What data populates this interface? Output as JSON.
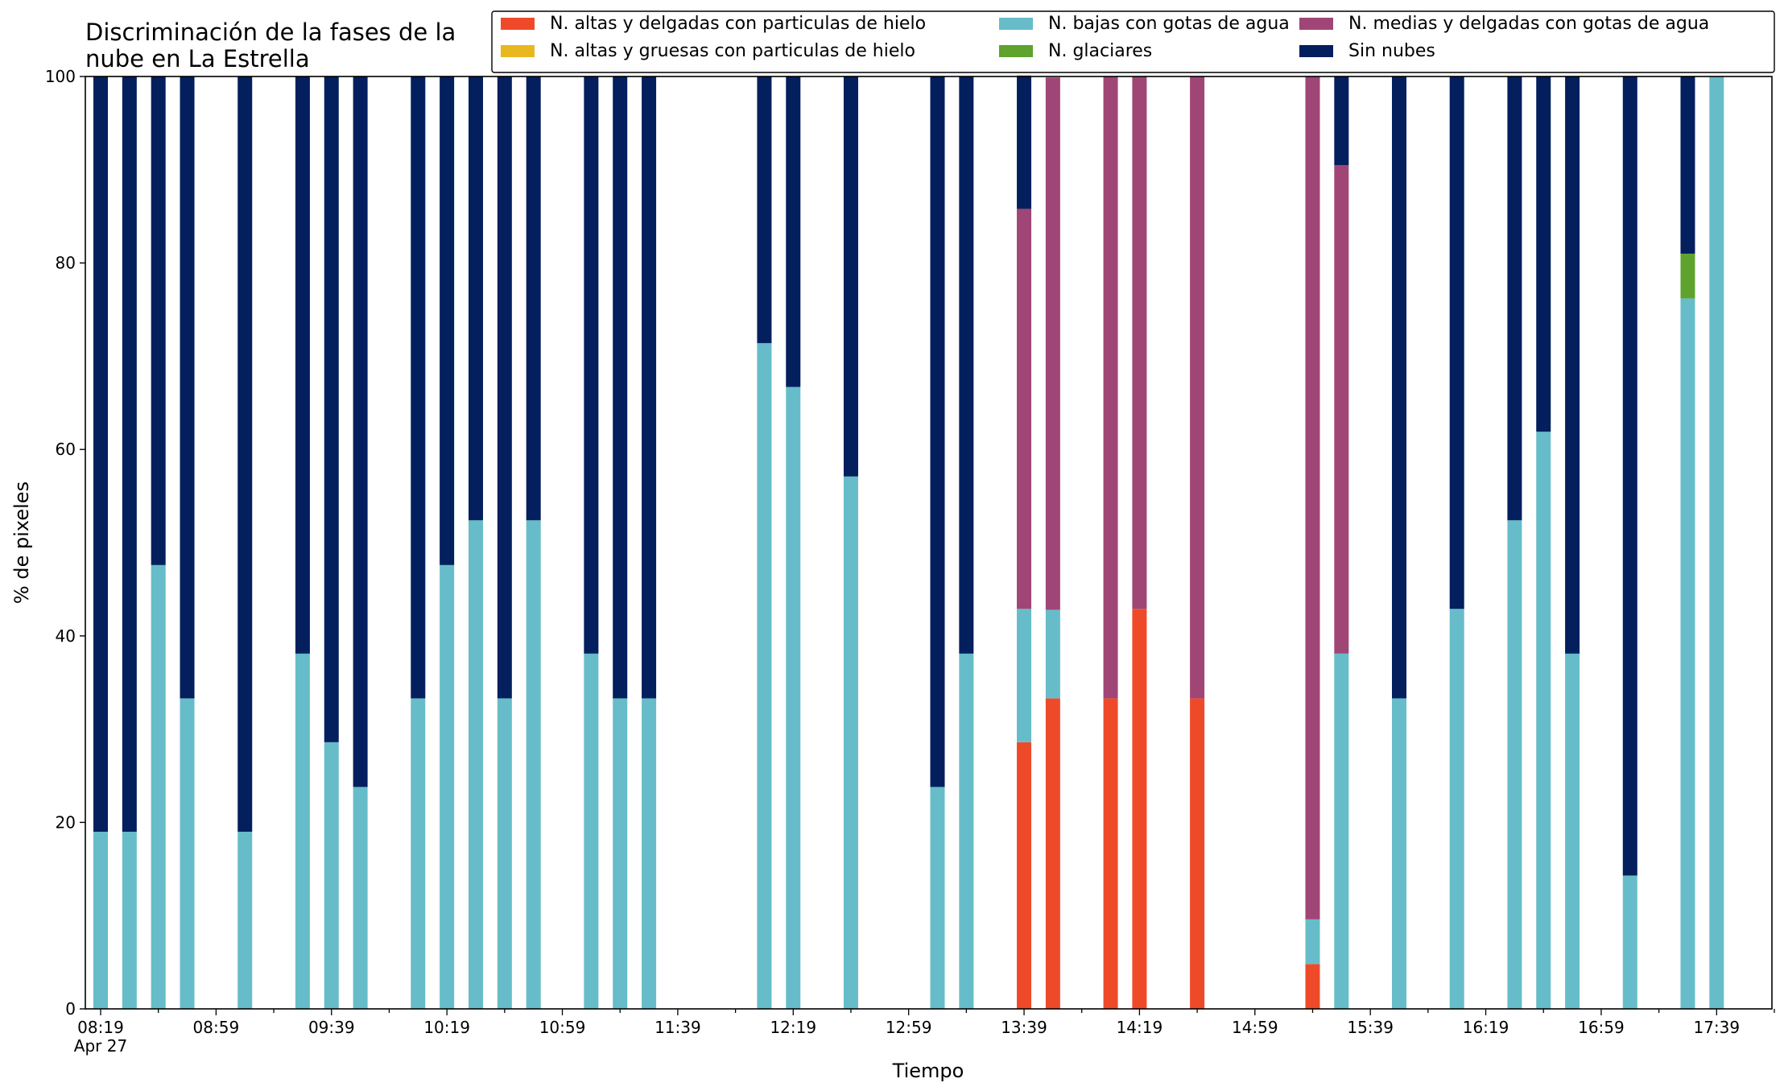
{
  "chart_data": {
    "type": "bar",
    "stacked": true,
    "title_lines": [
      "Discriminación de la fases de la",
      "nube en La Estrella"
    ],
    "xlabel": "Tiempo",
    "ylabel": "% de pixeles",
    "ylim": [
      0,
      100
    ],
    "yticks": [
      0,
      20,
      40,
      60,
      80,
      100
    ],
    "x_time_range": [
      "08:19",
      "17:59"
    ],
    "bin_minutes": 10,
    "major_ticks": [
      {
        "time": "08:19",
        "label": "08:19",
        "sublabel": "Apr 27"
      },
      {
        "time": "08:59",
        "label": "08:59"
      },
      {
        "time": "09:39",
        "label": "09:39"
      },
      {
        "time": "10:19",
        "label": "10:19"
      },
      {
        "time": "10:59",
        "label": "10:59"
      },
      {
        "time": "11:39",
        "label": "11:39"
      },
      {
        "time": "12:19",
        "label": "12:19"
      },
      {
        "time": "12:59",
        "label": "12:59"
      },
      {
        "time": "13:39",
        "label": "13:39"
      },
      {
        "time": "14:19",
        "label": "14:19"
      },
      {
        "time": "14:59",
        "label": "14:59"
      },
      {
        "time": "15:39",
        "label": "15:39"
      },
      {
        "time": "16:19",
        "label": "16:19"
      },
      {
        "time": "16:59",
        "label": "16:59"
      },
      {
        "time": "17:39",
        "label": "17:39"
      }
    ],
    "legend": {
      "position": "top-right",
      "columns": 3,
      "entries": [
        {
          "name": "N. altas y delgadas con particulas de hielo",
          "color": "#ee4a2a"
        },
        {
          "name": "N. altas y gruesas con particulas de hielo",
          "color": "#e9b820"
        },
        {
          "name": "N. bajas con gotas de agua",
          "color": "#66bdc9"
        },
        {
          "name": "N. glaciares",
          "color": "#5da32e"
        },
        {
          "name": "N. medias y delgadas con gotas de agua",
          "color": "#a04677"
        },
        {
          "name": "Sin nubes",
          "color": "#041f5e"
        }
      ]
    },
    "series_order": [
      "N. altas y delgadas con particulas de hielo",
      "N. altas y gruesas con particulas de hielo",
      "N. bajas con gotas de agua",
      "N. glaciares",
      "N. medias y delgadas con gotas de agua",
      "Sin nubes"
    ],
    "bars": [
      {
        "time": "08:19",
        "values": [
          0,
          0,
          19,
          0,
          0,
          81
        ]
      },
      {
        "time": "08:29",
        "values": [
          0,
          0,
          19,
          0,
          0,
          81
        ]
      },
      {
        "time": "08:39",
        "values": [
          0,
          0,
          47.6,
          0,
          0,
          52.4
        ]
      },
      {
        "time": "08:49",
        "values": [
          0,
          0,
          33.3,
          0,
          0,
          66.7
        ]
      },
      {
        "time": "09:09",
        "values": [
          0,
          0,
          19,
          0,
          0,
          81
        ]
      },
      {
        "time": "09:29",
        "values": [
          0,
          0,
          38.1,
          0,
          0,
          61.9
        ]
      },
      {
        "time": "09:39",
        "values": [
          0,
          0,
          28.6,
          0,
          0,
          71.4
        ]
      },
      {
        "time": "09:49",
        "values": [
          0,
          0,
          23.8,
          0,
          0,
          76.2
        ]
      },
      {
        "time": "10:09",
        "values": [
          0,
          0,
          33.3,
          0,
          0,
          66.7
        ]
      },
      {
        "time": "10:19",
        "values": [
          0,
          0,
          47.6,
          0,
          0,
          52.4
        ]
      },
      {
        "time": "10:29",
        "values": [
          0,
          0,
          52.4,
          0,
          0,
          47.6
        ]
      },
      {
        "time": "10:39",
        "values": [
          0,
          0,
          33.3,
          0,
          0,
          66.7
        ]
      },
      {
        "time": "10:49",
        "values": [
          0,
          0,
          52.4,
          0,
          0,
          47.6
        ]
      },
      {
        "time": "11:09",
        "values": [
          0,
          0,
          38.1,
          0,
          0,
          61.9
        ]
      },
      {
        "time": "11:19",
        "values": [
          0,
          0,
          33.3,
          0,
          0,
          66.7
        ]
      },
      {
        "time": "11:29",
        "values": [
          0,
          0,
          33.3,
          0,
          0,
          66.7
        ]
      },
      {
        "time": "12:09",
        "values": [
          0,
          0,
          71.4,
          0,
          0,
          28.6
        ]
      },
      {
        "time": "12:19",
        "values": [
          0,
          0,
          66.7,
          0,
          0,
          33.3
        ]
      },
      {
        "time": "12:39",
        "values": [
          0,
          0,
          57.1,
          0,
          0,
          42.9
        ]
      },
      {
        "time": "13:09",
        "values": [
          0,
          0,
          23.8,
          0,
          0,
          76.2
        ]
      },
      {
        "time": "13:19",
        "values": [
          0,
          0,
          38.1,
          0,
          0,
          61.9
        ]
      },
      {
        "time": "13:39",
        "values": [
          28.6,
          0,
          14.3,
          0,
          42.9,
          14.3
        ]
      },
      {
        "time": "13:49",
        "values": [
          33.3,
          0,
          9.5,
          0,
          57.1,
          0
        ]
      },
      {
        "time": "14:09",
        "values": [
          33.3,
          0,
          0,
          0,
          66.7,
          0
        ]
      },
      {
        "time": "14:19",
        "values": [
          42.9,
          0,
          0,
          0,
          57.1,
          0
        ]
      },
      {
        "time": "14:39",
        "values": [
          33.3,
          0,
          0,
          0,
          66.7,
          0
        ]
      },
      {
        "time": "15:19",
        "values": [
          4.8,
          0,
          4.8,
          0,
          90.4,
          0
        ]
      },
      {
        "time": "15:29",
        "values": [
          0,
          0,
          38.1,
          0,
          52.4,
          9.5
        ]
      },
      {
        "time": "15:49",
        "values": [
          0,
          0,
          33.3,
          0,
          0,
          66.7
        ]
      },
      {
        "time": "16:09",
        "values": [
          0,
          0,
          42.9,
          0,
          0,
          57.1
        ]
      },
      {
        "time": "16:29",
        "values": [
          0,
          0,
          52.4,
          0,
          0,
          47.6
        ]
      },
      {
        "time": "16:39",
        "values": [
          0,
          0,
          61.9,
          0,
          0,
          38.1
        ]
      },
      {
        "time": "16:49",
        "values": [
          0,
          0,
          38.1,
          0,
          0,
          61.9
        ]
      },
      {
        "time": "17:09",
        "values": [
          0,
          0,
          14.3,
          0,
          0,
          85.7
        ]
      },
      {
        "time": "17:29",
        "values": [
          0,
          0,
          76.2,
          4.8,
          0,
          19
        ]
      },
      {
        "time": "17:39",
        "values": [
          0,
          0,
          100,
          0,
          0,
          0
        ]
      }
    ]
  }
}
